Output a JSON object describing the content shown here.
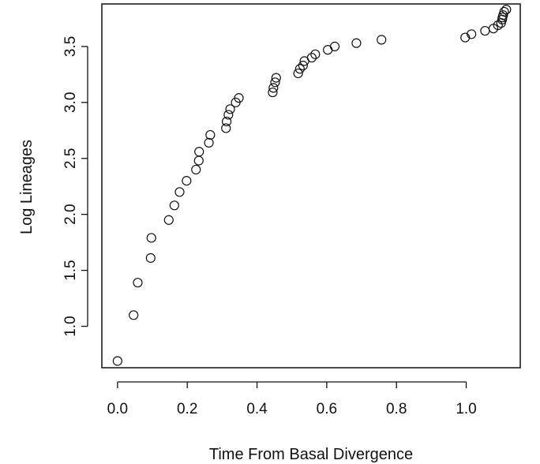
{
  "chart_data": {
    "type": "scatter",
    "title": "",
    "xlabel": "Time From Basal Divergence",
    "ylabel": "Log Lineages",
    "xlim": [
      -0.045,
      1.155
    ],
    "ylim": [
      0.63,
      3.88
    ],
    "xticks": [
      0.0,
      0.2,
      0.4,
      0.6,
      0.8,
      1.0
    ],
    "xtick_labels": [
      "0.0",
      "0.2",
      "0.4",
      "0.6",
      "0.8",
      "1.0"
    ],
    "yticks": [
      1.0,
      1.5,
      2.0,
      2.5,
      3.0,
      3.5
    ],
    "ytick_labels": [
      "1.0",
      "1.5",
      "2.0",
      "2.5",
      "3.0",
      "3.5"
    ],
    "grid": false,
    "legend": "none",
    "marker": "open-circle",
    "points": [
      [
        0.0,
        0.69
      ],
      [
        0.046,
        1.1
      ],
      [
        0.058,
        1.39
      ],
      [
        0.095,
        1.61
      ],
      [
        0.097,
        1.79
      ],
      [
        0.147,
        1.95
      ],
      [
        0.163,
        2.08
      ],
      [
        0.178,
        2.2
      ],
      [
        0.198,
        2.3
      ],
      [
        0.225,
        2.4
      ],
      [
        0.233,
        2.48
      ],
      [
        0.234,
        2.56
      ],
      [
        0.262,
        2.64
      ],
      [
        0.266,
        2.71
      ],
      [
        0.311,
        2.77
      ],
      [
        0.313,
        2.83
      ],
      [
        0.318,
        2.89
      ],
      [
        0.323,
        2.94
      ],
      [
        0.339,
        3.0
      ],
      [
        0.348,
        3.04
      ],
      [
        0.445,
        3.09
      ],
      [
        0.447,
        3.13
      ],
      [
        0.452,
        3.18
      ],
      [
        0.455,
        3.22
      ],
      [
        0.518,
        3.26
      ],
      [
        0.523,
        3.3
      ],
      [
        0.532,
        3.33
      ],
      [
        0.536,
        3.37
      ],
      [
        0.557,
        3.4
      ],
      [
        0.567,
        3.43
      ],
      [
        0.603,
        3.47
      ],
      [
        0.623,
        3.5
      ],
      [
        0.685,
        3.53
      ],
      [
        0.757,
        3.56
      ],
      [
        0.997,
        3.58
      ],
      [
        1.015,
        3.61
      ],
      [
        1.054,
        3.64
      ],
      [
        1.078,
        3.66
      ],
      [
        1.091,
        3.69
      ],
      [
        1.1,
        3.71
      ],
      [
        1.103,
        3.74
      ],
      [
        1.104,
        3.76
      ],
      [
        1.106,
        3.78
      ],
      [
        1.109,
        3.81
      ],
      [
        1.115,
        3.83
      ]
    ]
  }
}
